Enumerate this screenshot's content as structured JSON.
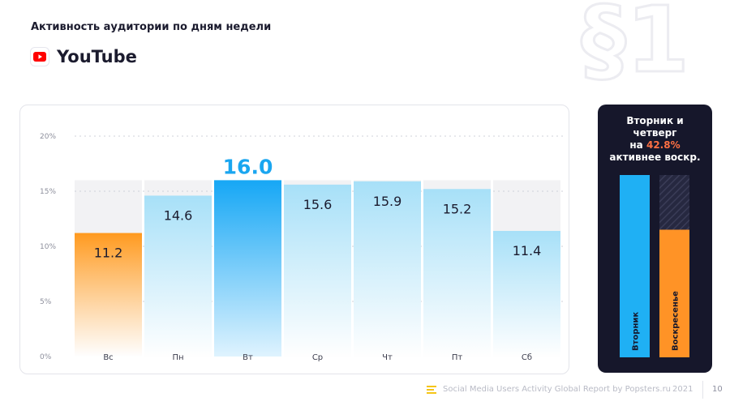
{
  "header": {
    "title": "Активность аудитории по дням недели",
    "platform": "YouTube",
    "watermark": "§1"
  },
  "chart_data": {
    "type": "bar",
    "categories": [
      "Вс",
      "Пн",
      "Вт",
      "Ср",
      "Чт",
      "Пт",
      "Сб"
    ],
    "values": [
      11.2,
      14.6,
      16.0,
      15.6,
      15.9,
      15.2,
      11.4
    ],
    "value_labels": [
      "11.2",
      "14.6",
      "16.0",
      "15.6",
      "15.9",
      "15.2",
      "11.4"
    ],
    "highlight_max": "Вт",
    "highlight_min": "Вс",
    "ylim": [
      0,
      20
    ],
    "yticks": [
      "0%",
      "5%",
      "10%",
      "15%",
      "20%"
    ],
    "ytick_values": [
      0,
      5,
      10,
      15,
      20
    ],
    "grid": true,
    "colors": {
      "bar": "#9fdcf6",
      "bar_max": "#18aaf5",
      "bar_min": "#ff9a1f",
      "max_label": "#1aa6f0",
      "track": "#f2f2f4"
    }
  },
  "comparison": {
    "lines": [
      "Вторник и",
      "четверг",
      "на",
      "42.8%",
      "активнее воскр."
    ],
    "bars": [
      {
        "label": "Вторник",
        "value": 1.0,
        "color": "#1fb0f4"
      },
      {
        "label": "Воскресенье",
        "value": 0.7,
        "color": "#ff9326"
      }
    ]
  },
  "footer": {
    "report": "Social Media Users Activity Global Report by Popsters.ru",
    "year": "2021",
    "page": "10",
    "accent": "#f5c518"
  }
}
